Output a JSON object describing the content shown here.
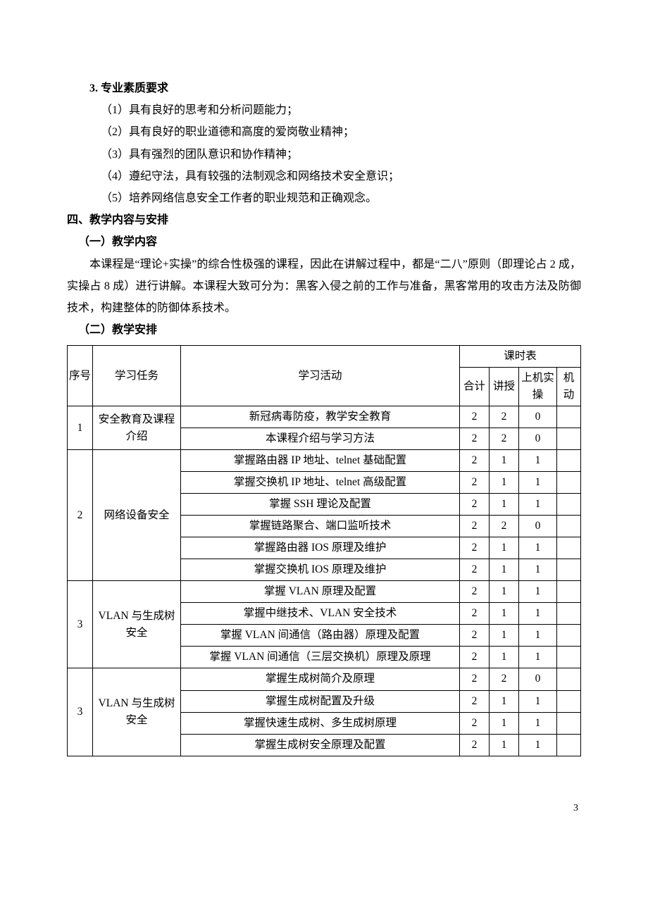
{
  "section3": {
    "title": "3. 专业素质要求",
    "items": [
      "（1）具有良好的思考和分析问题能力；",
      "（2）具有良好的职业道德和高度的爱岗敬业精神；",
      "（3）具有强烈的团队意识和协作精神；",
      "（4）遵纪守法，具有较强的法制观念和网络技术安全意识；",
      "（5）培养网络信息安全工作者的职业规范和正确观念。"
    ]
  },
  "section4": {
    "title": "四、教学内容与安排",
    "sub1": {
      "title": "（一）教学内容",
      "para": "本课程是“理论+实操”的综合性极强的课程，因此在讲解过程中，都是“二八”原则（即理论占 2 成，实操占 8 成）进行讲解。本课程大致可分为：黑客入侵之前的工作与准备，黑客常用的攻击方法及防御技术，构建整体的防御体系技术。"
    },
    "sub2": {
      "title": "（二）教学安排"
    }
  },
  "table": {
    "headers": {
      "idx": "序号",
      "task": "学习任务",
      "activity": "学习活动",
      "schedule": "课时表",
      "total": "合计",
      "lecture": "讲授",
      "lab": "上机实操",
      "flex": "机动"
    },
    "groups": [
      {
        "idx": "1",
        "task": "安全教育及课程介绍",
        "rows": [
          {
            "act": "新冠病毒防疫，教学安全教育",
            "total": "2",
            "lec": "2",
            "lab": "0",
            "flex": ""
          },
          {
            "act": "本课程介绍与学习方法",
            "total": "2",
            "lec": "2",
            "lab": "0",
            "flex": ""
          }
        ]
      },
      {
        "idx": "2",
        "task": "网络设备安全",
        "rows": [
          {
            "act": "掌握路由器 IP 地址、telnet 基础配置",
            "total": "2",
            "lec": "1",
            "lab": "1",
            "flex": ""
          },
          {
            "act": "掌握交换机 IP 地址、telnet 高级配置",
            "total": "2",
            "lec": "1",
            "lab": "1",
            "flex": ""
          },
          {
            "act": "掌握 SSH 理论及配置",
            "total": "2",
            "lec": "1",
            "lab": "1",
            "flex": ""
          },
          {
            "act": "掌握链路聚合、端口监听技术",
            "total": "2",
            "lec": "2",
            "lab": "0",
            "flex": ""
          },
          {
            "act": "掌握路由器 IOS 原理及维护",
            "total": "2",
            "lec": "1",
            "lab": "1",
            "flex": ""
          },
          {
            "act": "掌握交换机 IOS 原理及维护",
            "total": "2",
            "lec": "1",
            "lab": "1",
            "flex": ""
          }
        ]
      },
      {
        "idx": "3",
        "task": "VLAN 与生成树安全",
        "rows": [
          {
            "act": "掌握 VLAN 原理及配置",
            "total": "2",
            "lec": "1",
            "lab": "1",
            "flex": ""
          },
          {
            "act": "掌握中继技术、VLAN 安全技术",
            "total": "2",
            "lec": "1",
            "lab": "1",
            "flex": ""
          },
          {
            "act": "掌握 VLAN 间通信（路由器）原理及配置",
            "total": "2",
            "lec": "1",
            "lab": "1",
            "flex": ""
          },
          {
            "act": "掌握 VLAN 间通信（三层交换机）原理及原理",
            "total": "2",
            "lec": "1",
            "lab": "1",
            "flex": ""
          }
        ]
      },
      {
        "idx": "3",
        "task": "VLAN 与生成树安全",
        "rows": [
          {
            "act": "掌握生成树简介及原理",
            "total": "2",
            "lec": "2",
            "lab": "0",
            "flex": ""
          },
          {
            "act": "掌握生成树配置及升级",
            "total": "2",
            "lec": "1",
            "lab": "1",
            "flex": ""
          },
          {
            "act": "掌握快速生成树、多生成树原理",
            "total": "2",
            "lec": "1",
            "lab": "1",
            "flex": ""
          },
          {
            "act": "掌握生成树安全原理及配置",
            "total": "2",
            "lec": "1",
            "lab": "1",
            "flex": ""
          }
        ]
      }
    ]
  },
  "pageNumber": "3"
}
